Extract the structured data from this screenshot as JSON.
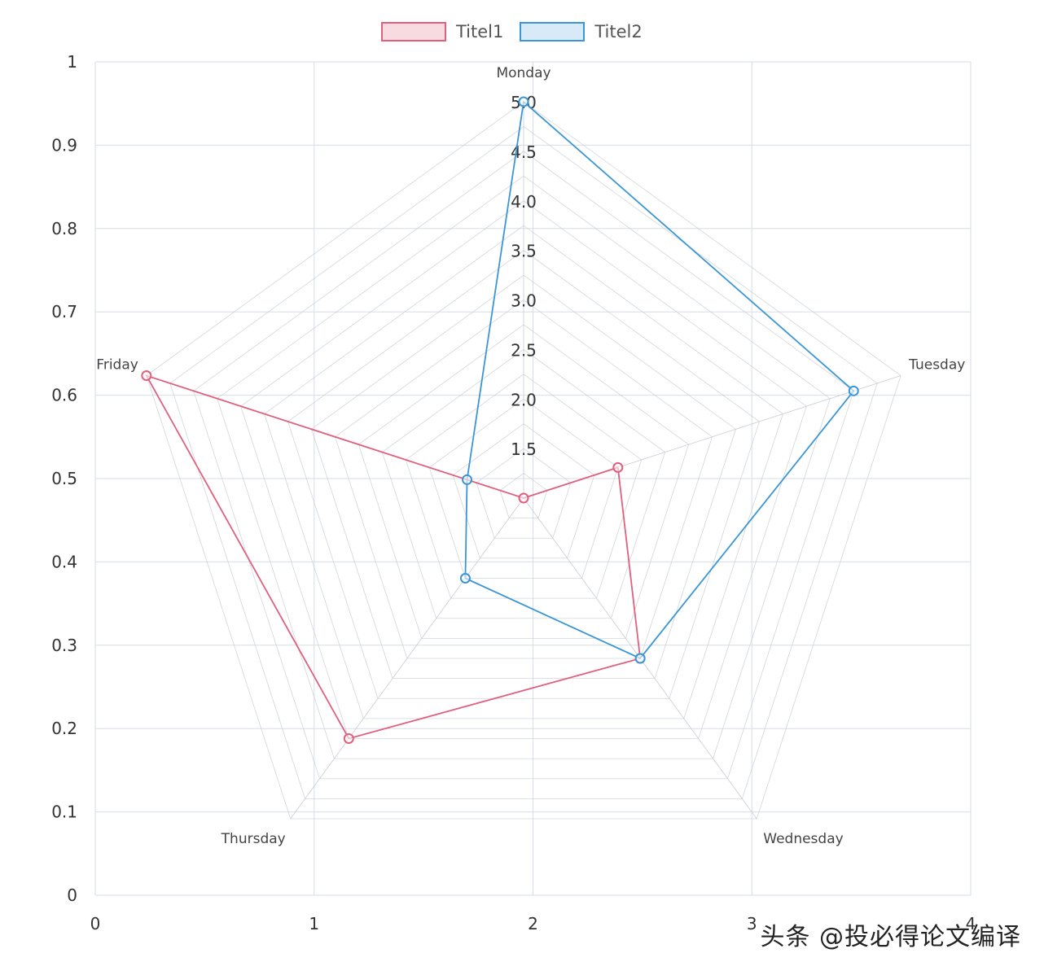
{
  "chart_data": {
    "type": "radar",
    "legend": [
      {
        "label": "Titel1",
        "stroke": "#e0607e",
        "fill": "#f8dbe1"
      },
      {
        "label": "Titel2",
        "stroke": "#3a96d6",
        "fill": "#d8eaf8"
      }
    ],
    "categories": [
      "Monday",
      "Tuesday",
      "Wednesday",
      "Thursday",
      "Friday"
    ],
    "radial_ticks": [
      "1.5",
      "2.0",
      "2.5",
      "3.0",
      "3.5",
      "4.0",
      "4.5",
      "5.0"
    ],
    "radial_range": [
      1.0,
      5.0
    ],
    "series": [
      {
        "name": "Titel1",
        "color": "#e0607e",
        "values": [
          1.0,
          2.0,
          3.0,
          4.0,
          5.0
        ]
      },
      {
        "name": "Titel2",
        "color": "#3a96d6",
        "values": [
          5.0,
          4.5,
          3.0,
          2.0,
          1.6
        ]
      }
    ],
    "background_axes": {
      "x_ticks": [
        "0",
        "1",
        "2",
        "3",
        "4"
      ],
      "y_ticks": [
        "0",
        "0.1",
        "0.2",
        "0.3",
        "0.4",
        "0.5",
        "0.6",
        "0.7",
        "0.8",
        "0.9",
        "1"
      ],
      "x_range": [
        0,
        4
      ],
      "y_range": [
        0,
        1
      ],
      "grid": true
    },
    "colors": {
      "grid": "#d6dde6",
      "radar_grid": "#c8ccd2",
      "axis_text": "#333333"
    }
  },
  "watermark": "头条 @投必得论文编译"
}
